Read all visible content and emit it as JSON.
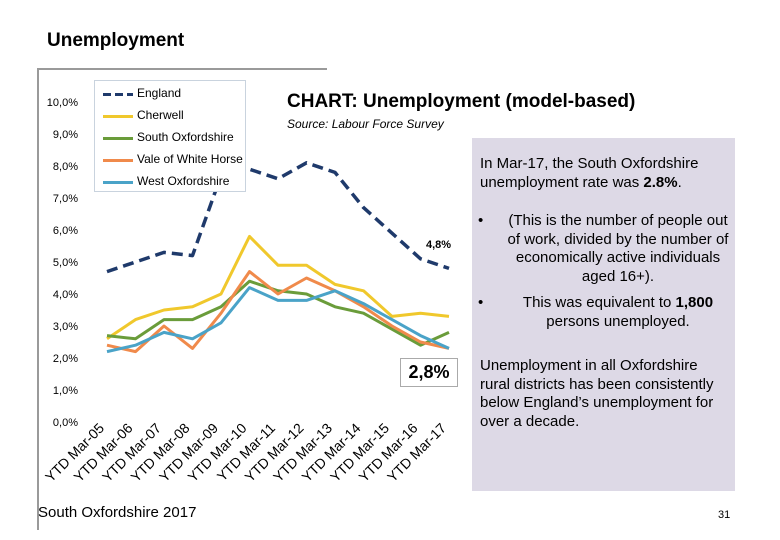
{
  "page": {
    "title": "Unemployment",
    "footer": "South Oxfordshire 2017",
    "page_number": "31"
  },
  "chart_heading": "CHART: Unemployment (model-based)",
  "chart_source": "Source: Labour Force Survey",
  "colors": {
    "England": "#1f3a6b",
    "Cherwell": "#f0c82c",
    "South Oxfordshire": "#6a9c3a",
    "Vale of White Horse": "#f08a4b",
    "West Oxfordshire": "#4aa3c8"
  },
  "chart_data": {
    "type": "line",
    "x": [
      "YTD Mar-05",
      "YTD Mar-06",
      "YTD Mar-07",
      "YTD Mar-08",
      "YTD Mar-09",
      "YTD Mar-10",
      "YTD Mar-11",
      "YTD Mar-12",
      "YTD Mar-13",
      "YTD Mar-14",
      "YTD Mar-15",
      "YTD Mar-16",
      "YTD Mar-17"
    ],
    "ylim": [
      0,
      10
    ],
    "y_tick_labels": [
      "0,0%",
      "1,0%",
      "2,0%",
      "3,0%",
      "4,0%",
      "5,0%",
      "6,0%",
      "7,0%",
      "8,0%",
      "9,0%",
      "10,0%"
    ],
    "grid": false,
    "legend": "top-left",
    "series": [
      {
        "name": "England",
        "dashed": true,
        "values": [
          4.7,
          5.0,
          5.3,
          5.2,
          7.7,
          7.9,
          7.6,
          8.1,
          7.8,
          6.7,
          5.9,
          5.1,
          4.8
        ]
      },
      {
        "name": "Cherwell",
        "values": [
          2.6,
          3.2,
          3.5,
          3.6,
          4.0,
          5.8,
          4.9,
          4.9,
          4.3,
          4.1,
          3.3,
          3.4,
          3.3
        ]
      },
      {
        "name": "South Oxfordshire",
        "values": [
          2.7,
          2.6,
          3.2,
          3.2,
          3.6,
          4.4,
          4.1,
          4.0,
          3.6,
          3.4,
          2.9,
          2.4,
          2.8
        ]
      },
      {
        "name": "Vale of White Horse",
        "values": [
          2.4,
          2.2,
          3.0,
          2.3,
          3.4,
          4.7,
          4.0,
          4.5,
          4.1,
          3.6,
          3.0,
          2.5,
          2.3
        ]
      },
      {
        "name": "West Oxfordshire",
        "values": [
          2.2,
          2.4,
          2.8,
          2.6,
          3.1,
          4.2,
          3.8,
          3.8,
          4.1,
          3.7,
          3.2,
          2.7,
          2.3
        ]
      }
    ],
    "annotations": [
      {
        "text": "4,8%",
        "series": "England"
      },
      {
        "text": "2,8%",
        "series": "South Oxfordshire"
      }
    ]
  },
  "sidebar": {
    "p1": "In Mar-17, the South Oxfordshire unemployment rate was",
    "p1_value": "2.8%",
    "bullet_char": "•",
    "b1": "(This is the number of people out of work, divided by the number of economically active individuals aged 16+).",
    "b2_pre": "This was equivalent to",
    "b2_value": "1,800",
    "b2_post": "persons unemployed.",
    "p2": "Unemployment in all Oxfordshire rural districts has been consistently below England’s unemployment for over a decade."
  }
}
